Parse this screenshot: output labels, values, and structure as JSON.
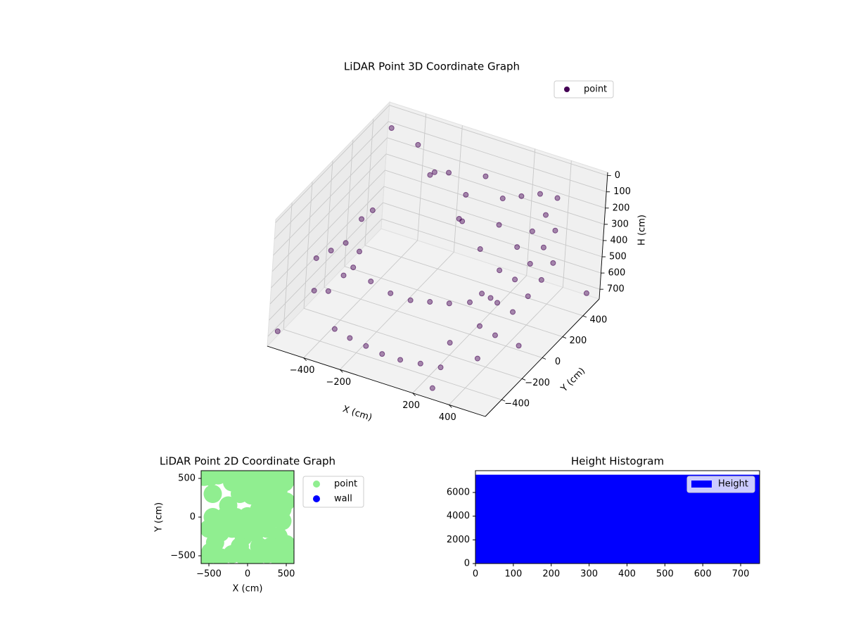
{
  "chart_data": [
    {
      "type": "scatter3d",
      "title": "LiDAR Point 3D Coordinate Graph",
      "x_label": "X (cm)",
      "y_label": "Y (cm)",
      "z_label": "H (cm)",
      "xlim": [
        -600,
        600
      ],
      "ylim": [
        -560,
        560
      ],
      "zlim": [
        760,
        -20
      ],
      "xticks": [
        {
          "value": -400,
          "label": "−400"
        },
        {
          "value": -200,
          "label": "−200"
        },
        200,
        400
      ],
      "yticks": [
        {
          "value": -400,
          "label": "−400"
        },
        {
          "value": -200,
          "label": "−200"
        },
        0,
        200,
        400
      ],
      "zticks": [
        0,
        100,
        200,
        300,
        400,
        500,
        600,
        700
      ],
      "grid": true,
      "legend": "upper right",
      "series": [
        {
          "name": "point",
          "color": "#440154",
          "x": [
            430,
            430,
            430,
            440,
            440,
            440,
            450,
            450,
            450,
            450,
            450,
            450,
            440,
            440,
            440,
            420,
            420,
            420,
            -300,
            -200,
            -100,
            0,
            100,
            200,
            300,
            -100,
            100,
            -500,
            -500,
            -500,
            -500,
            -500,
            -500,
            -500,
            -500,
            -520,
            -400,
            -300,
            -200,
            -100,
            0,
            100,
            200,
            300,
            -350,
            -250,
            -150,
            -50,
            50,
            150,
            250,
            -560,
            -580,
            560,
            300,
            -200,
            0,
            150,
            -350,
            250,
            520
          ],
          "y": [
            -350,
            -350,
            -350,
            -200,
            -200,
            -200,
            -50,
            -50,
            -50,
            100,
            100,
            100,
            250,
            250,
            250,
            400,
            400,
            400,
            450,
            450,
            450,
            450,
            450,
            450,
            450,
            430,
            430,
            -300,
            -300,
            -150,
            -150,
            0,
            0,
            150,
            150,
            300,
            -100,
            -100,
            -80,
            -60,
            -50,
            -40,
            -20,
            0,
            -350,
            -380,
            -400,
            -420,
            -420,
            -400,
            -380,
            520,
            -500,
            500,
            -550,
            300,
            200,
            150,
            400,
            -300,
            -100
          ],
          "z": [
            200,
            400,
            600,
            150,
            350,
            550,
            100,
            300,
            500,
            100,
            300,
            500,
            100,
            300,
            500,
            100,
            300,
            500,
            250,
            200,
            300,
            150,
            250,
            200,
            150,
            450,
            400,
            350,
            550,
            400,
            650,
            450,
            650,
            400,
            600,
            450,
            500,
            550,
            600,
            620,
            600,
            580,
            550,
            500,
            700,
            700,
            700,
            700,
            700,
            700,
            700,
            100,
            700,
            700,
            700,
            100,
            250,
            350,
            50,
            600,
            650
          ]
        }
      ]
    },
    {
      "type": "scatter",
      "title": "LiDAR Point 2D Coordinate Graph",
      "x_label": "X (cm)",
      "y_label": "Y (cm)",
      "xlim": [
        -600,
        600
      ],
      "ylim": [
        -600,
        600
      ],
      "xticks": [
        {
          "value": -500,
          "label": "−500"
        },
        0,
        500
      ],
      "yticks": [
        {
          "value": -500,
          "label": "−500"
        },
        0,
        500
      ],
      "legend": "outside right",
      "series": [
        {
          "name": "point",
          "color": "#90ee90",
          "x": [
            -480,
            -380,
            -250,
            -120,
            0,
            120,
            250,
            380,
            480,
            -200,
            -50,
            100,
            250,
            400,
            500,
            -100,
            50,
            200,
            350,
            450,
            -450,
            -300,
            -150,
            0,
            150,
            300,
            450,
            -500,
            -350,
            -200,
            -50,
            100,
            250,
            400,
            500,
            -480,
            -350,
            -200,
            -50,
            100,
            250,
            400,
            520,
            300,
            150,
            -100,
            -420,
            0,
            200,
            350,
            150,
            -250,
            -450,
            520,
            -560,
            -560
          ],
          "y": [
            520,
            540,
            560,
            520,
            540,
            560,
            540,
            500,
            450,
            450,
            420,
            430,
            400,
            350,
            200,
            300,
            280,
            260,
            220,
            100,
            0,
            0,
            0,
            10,
            0,
            -20,
            -50,
            -150,
            -200,
            -150,
            -250,
            -200,
            -150,
            -250,
            -350,
            -450,
            -520,
            -480,
            -500,
            -530,
            -480,
            -520,
            -520,
            -380,
            -380,
            -380,
            -330,
            -100,
            -50,
            100,
            100,
            150,
            300,
            500,
            -560,
            520
          ]
        },
        {
          "name": "wall",
          "color": "#0000ff",
          "x": [],
          "y": []
        }
      ]
    },
    {
      "type": "histogram",
      "title": "Height Histogram",
      "legend": "upper right",
      "xlim": [
        0,
        750
      ],
      "ylim": [
        0,
        7840
      ],
      "xticks": [
        0,
        100,
        200,
        300,
        400,
        500,
        600,
        700
      ],
      "yticks": [
        0,
        2000,
        4000,
        6000
      ],
      "series": [
        {
          "name": "Height",
          "color": "#0000ff",
          "bins": [
            0,
            750
          ],
          "values": [
            7500
          ]
        }
      ]
    }
  ]
}
